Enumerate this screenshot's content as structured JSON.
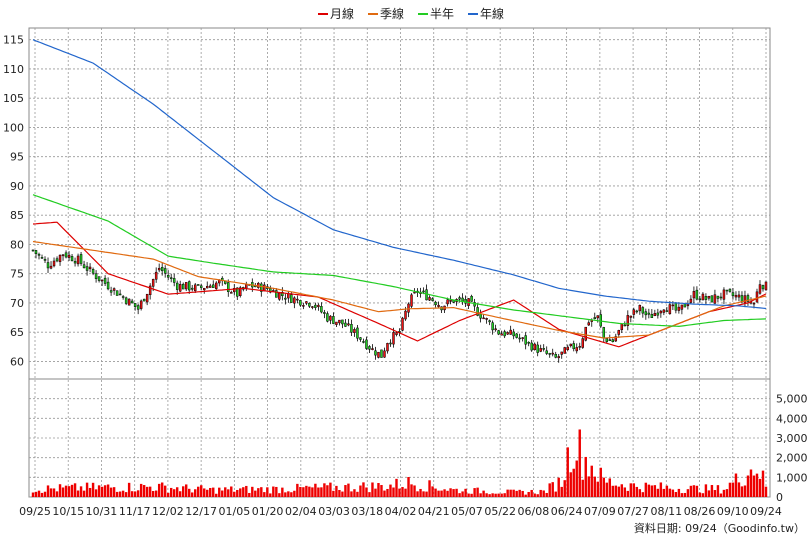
{
  "chart_data": {
    "type": "candlestick+line+bar",
    "legend": [
      {
        "label": "月線",
        "color": "#dd0000"
      },
      {
        "label": "季線",
        "color": "#e06a10"
      },
      {
        "label": "半年",
        "color": "#22cc22"
      },
      {
        "label": "年線",
        "color": "#2266cc"
      }
    ],
    "price_axis": {
      "ylim": [
        57,
        117
      ],
      "ticks": [
        60,
        65,
        70,
        75,
        80,
        85,
        90,
        95,
        100,
        105,
        110,
        115
      ]
    },
    "volume_axis": {
      "ylim": [
        0,
        6000
      ],
      "ticks": [
        "0",
        "1,000",
        "2,000",
        "3,000",
        "4,000",
        "5,000"
      ],
      "tick_values": [
        0,
        1000,
        2000,
        3000,
        4000,
        5000
      ]
    },
    "x_labels": [
      "09/25",
      "10/15",
      "10/31",
      "11/17",
      "12/02",
      "12/17",
      "01/05",
      "01/20",
      "02/04",
      "03/03",
      "03/18",
      "04/02",
      "04/21",
      "05/07",
      "05/22",
      "06/08",
      "06/24",
      "07/09",
      "07/27",
      "08/11",
      "08/26",
      "09/10",
      "09/24"
    ],
    "n_days": 245,
    "moving_averages": {
      "月線": [
        [
          0,
          83.5
        ],
        [
          8,
          83.8
        ],
        [
          25,
          75
        ],
        [
          45,
          71.5
        ],
        [
          70,
          72.5
        ],
        [
          95,
          71
        ],
        [
          115,
          66.5
        ],
        [
          128,
          63.5
        ],
        [
          142,
          67
        ],
        [
          160,
          70.5
        ],
        [
          175,
          65.5
        ],
        [
          195,
          62.5
        ],
        [
          210,
          65.5
        ],
        [
          225,
          68.5
        ],
        [
          238,
          70
        ],
        [
          245,
          71.8
        ]
      ],
      "季線": [
        [
          0,
          80.5
        ],
        [
          20,
          79
        ],
        [
          40,
          77.5
        ],
        [
          55,
          74.5
        ],
        [
          80,
          72.5
        ],
        [
          100,
          70.5
        ],
        [
          115,
          68.5
        ],
        [
          125,
          69
        ],
        [
          140,
          69.2
        ],
        [
          155,
          67.5
        ],
        [
          175,
          65.3
        ],
        [
          190,
          64
        ],
        [
          205,
          64.5
        ],
        [
          215,
          66.5
        ],
        [
          230,
          69.5
        ],
        [
          245,
          71.3
        ]
      ],
      "半年": [
        [
          0,
          88.5
        ],
        [
          25,
          84
        ],
        [
          45,
          78
        ],
        [
          60,
          76.8
        ],
        [
          80,
          75.3
        ],
        [
          100,
          74.7
        ],
        [
          120,
          72.8
        ],
        [
          140,
          70.5
        ],
        [
          160,
          68.8
        ],
        [
          180,
          67.5
        ],
        [
          195,
          66.5
        ],
        [
          215,
          66
        ],
        [
          230,
          67
        ],
        [
          245,
          67.3
        ]
      ],
      "年線": [
        [
          0,
          115
        ],
        [
          20,
          111
        ],
        [
          40,
          104
        ],
        [
          60,
          96
        ],
        [
          80,
          88
        ],
        [
          100,
          82.5
        ],
        [
          120,
          79.5
        ],
        [
          140,
          77.3
        ],
        [
          160,
          74.8
        ],
        [
          175,
          72.5
        ],
        [
          190,
          71.2
        ],
        [
          205,
          70.3
        ],
        [
          220,
          69.8
        ],
        [
          235,
          69.5
        ],
        [
          245,
          69
        ]
      ]
    },
    "close_path": [
      [
        0,
        79
      ],
      [
        5,
        76.5
      ],
      [
        10,
        78.5
      ],
      [
        15,
        77.3
      ],
      [
        20,
        75
      ],
      [
        25,
        73
      ],
      [
        30,
        71
      ],
      [
        35,
        69
      ],
      [
        38,
        72
      ],
      [
        42,
        76
      ],
      [
        48,
        73
      ],
      [
        55,
        72.5
      ],
      [
        62,
        73.5
      ],
      [
        68,
        71.5
      ],
      [
        72,
        73
      ],
      [
        78,
        72.5
      ],
      [
        82,
        71.5
      ],
      [
        88,
        70.5
      ],
      [
        93,
        70
      ],
      [
        98,
        67.5
      ],
      [
        103,
        66.5
      ],
      [
        108,
        64.5
      ],
      [
        113,
        62
      ],
      [
        116,
        61
      ],
      [
        118,
        63.5
      ],
      [
        122,
        65
      ],
      [
        125,
        70
      ],
      [
        128,
        72
      ],
      [
        132,
        71
      ],
      [
        136,
        69.5
      ],
      [
        140,
        70.5
      ],
      [
        145,
        70
      ],
      [
        150,
        67.5
      ],
      [
        155,
        65
      ],
      [
        160,
        64.5
      ],
      [
        165,
        63
      ],
      [
        170,
        61.5
      ],
      [
        174,
        60.5
      ],
      [
        178,
        62
      ],
      [
        182,
        63
      ],
      [
        185,
        67
      ],
      [
        188,
        67.5
      ],
      [
        190,
        64
      ],
      [
        193,
        63.5
      ],
      [
        198,
        67.5
      ],
      [
        202,
        69
      ],
      [
        205,
        67.5
      ],
      [
        210,
        69.5
      ],
      [
        215,
        68.5
      ],
      [
        220,
        71.5
      ],
      [
        225,
        70.5
      ],
      [
        230,
        71.5
      ],
      [
        235,
        71
      ],
      [
        240,
        70
      ],
      [
        242,
        73.5
      ],
      [
        245,
        72.5
      ]
    ],
    "volume_profile": [
      [
        0,
        500
      ],
      [
        20,
        600
      ],
      [
        40,
        650
      ],
      [
        60,
        450
      ],
      [
        80,
        500
      ],
      [
        100,
        600
      ],
      [
        118,
        700
      ],
      [
        125,
        900
      ],
      [
        140,
        450
      ],
      [
        160,
        300
      ],
      [
        170,
        350
      ],
      [
        176,
        1000
      ],
      [
        180,
        3800
      ],
      [
        183,
        2500
      ],
      [
        186,
        2000
      ],
      [
        190,
        1000
      ],
      [
        200,
        700
      ],
      [
        215,
        550
      ],
      [
        230,
        500
      ],
      [
        241,
        2000
      ],
      [
        245,
        300
      ]
    ],
    "source_label": "資料日期: 09/24（Goodinfo.tw）"
  }
}
